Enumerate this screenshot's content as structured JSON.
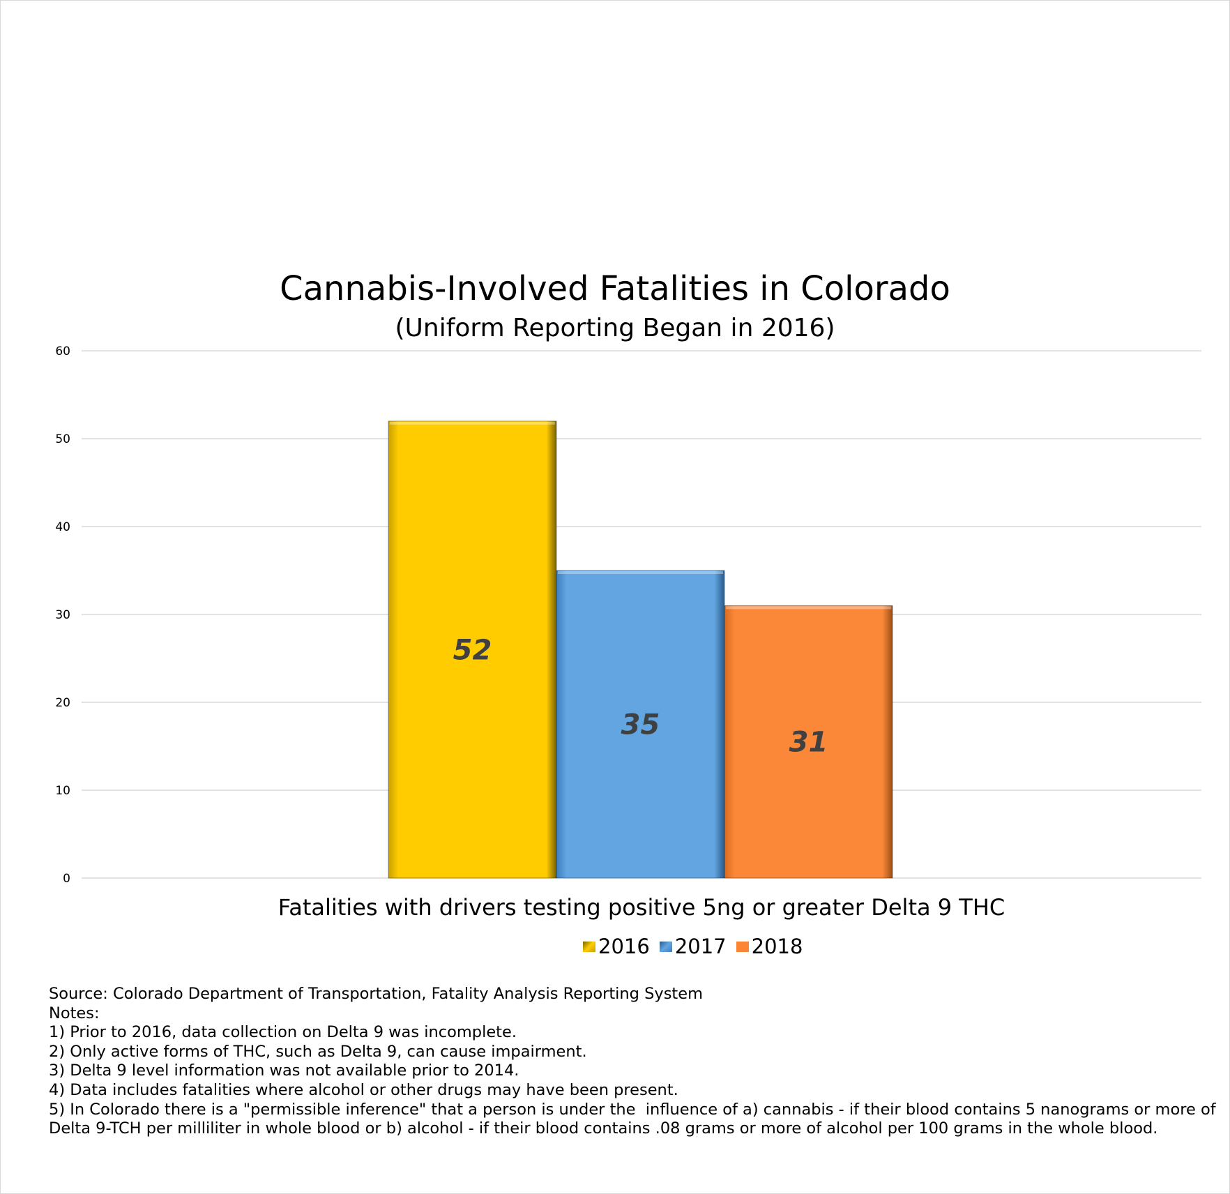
{
  "chart_data": {
    "type": "bar",
    "title": "Cannabis-Involved Fatalities in Colorado",
    "subtitle": "(Uniform Reporting Began in 2016)",
    "categories": [
      "Fatalities with drivers testing positive 5ng or greater Delta 9 THC"
    ],
    "series": [
      {
        "name": "2016",
        "values": [
          52
        ],
        "color": "#ffcc00"
      },
      {
        "name": "2017",
        "values": [
          35
        ],
        "color": "#5fa2dd"
      },
      {
        "name": "2018",
        "values": [
          31
        ],
        "color": "#fb8535"
      }
    ],
    "yticks": [
      "0",
      "10",
      "20",
      "30",
      "40",
      "50",
      "60"
    ],
    "ylim": [
      0,
      60
    ],
    "xlabel": "",
    "ylabel": "",
    "grid": true,
    "legend": "bottom"
  },
  "colors": {
    "gridline": "#d9d9d9",
    "label_text": "#404040"
  },
  "footer": {
    "source": "Source: Colorado Department of Transportation, Fatality Analysis Reporting System",
    "notes_heading": "Notes:",
    "notes": [
      "1) Prior to 2016, data collection on Delta 9 was incomplete.",
      "2) Only active forms of THC, such as Delta 9, can cause impairment.",
      "3) Delta 9 level information was not available prior to 2014.",
      "4) Data includes fatalities where alcohol or other drugs may have been present.",
      "5) In Colorado there is a \"permissible inference\" that a person is under the  influence of a) cannabis - if their blood contains 5 nanograms or more of Delta 9-TCH per milliliter in whole blood or b) alcohol - if their blood contains .08 grams or more of alcohol per 100 grams in the whole blood."
    ]
  }
}
